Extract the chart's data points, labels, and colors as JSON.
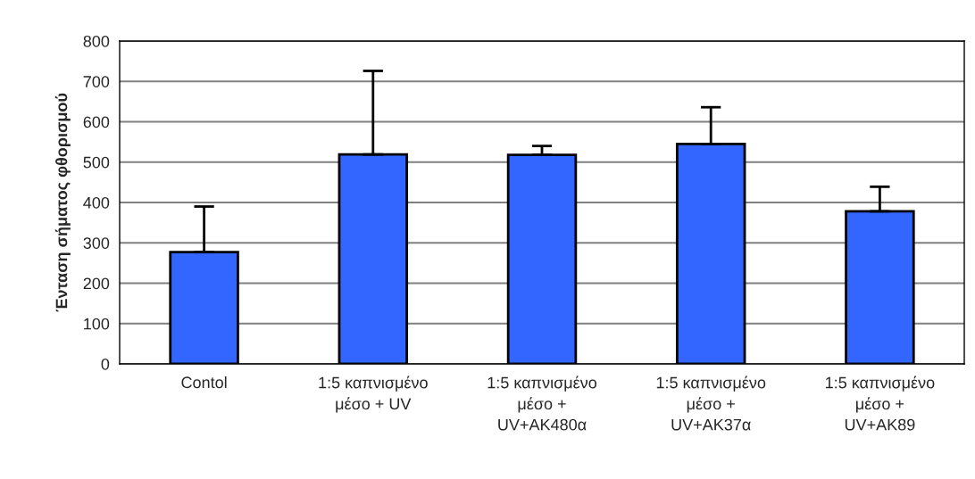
{
  "chart_data": {
    "type": "bar",
    "ylabel": "Ένταση σήματος φθορισμού",
    "categories": [
      "Contol",
      "1:5 καπνισμένο\nμέσο + UV",
      "1:5 καπνισμένο\nμέσο +\nUV+AK480α",
      "1:5 καπνισμένο\nμέσο +\nUV+AK37α",
      "1:5 καπνισμένο\nμέσο +\nUV+AK89"
    ],
    "values": [
      277,
      519,
      518,
      545,
      378
    ],
    "errors": [
      [
        277,
        390
      ],
      [
        519,
        726
      ],
      [
        518,
        540
      ],
      [
        545,
        636
      ],
      [
        378,
        439
      ]
    ],
    "color": "#3366ff",
    "ylim": [
      0,
      800
    ],
    "yticks": [
      0,
      100,
      200,
      300,
      400,
      500,
      600,
      700,
      800
    ],
    "grid": "y"
  }
}
